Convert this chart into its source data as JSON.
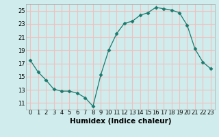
{
  "x": [
    0,
    1,
    2,
    3,
    4,
    5,
    6,
    7,
    8,
    9,
    10,
    11,
    12,
    13,
    14,
    15,
    16,
    17,
    18,
    19,
    20,
    21,
    22,
    23
  ],
  "y": [
    17.5,
    15.7,
    14.5,
    13.1,
    12.8,
    12.8,
    12.5,
    11.8,
    10.5,
    15.3,
    19.0,
    21.5,
    23.1,
    23.4,
    24.3,
    24.7,
    25.5,
    25.3,
    25.1,
    24.7,
    22.8,
    19.2,
    17.2,
    16.2
  ],
  "xlabel": "Humidex (Indice chaleur)",
  "ylim": [
    10,
    26
  ],
  "xlim": [
    -0.5,
    23.5
  ],
  "yticks": [
    11,
    13,
    15,
    17,
    19,
    21,
    23,
    25
  ],
  "xticks": [
    0,
    1,
    2,
    3,
    4,
    5,
    6,
    7,
    8,
    9,
    10,
    11,
    12,
    13,
    14,
    15,
    16,
    17,
    18,
    19,
    20,
    21,
    22,
    23
  ],
  "line_color": "#1a7a6e",
  "marker_color": "#1a7a6e",
  "bg_color": "#d0ecec",
  "grid_color": "#f0c0c0",
  "xlabel_fontsize": 7.5,
  "tick_fontsize": 6,
  "marker_size": 2.5
}
